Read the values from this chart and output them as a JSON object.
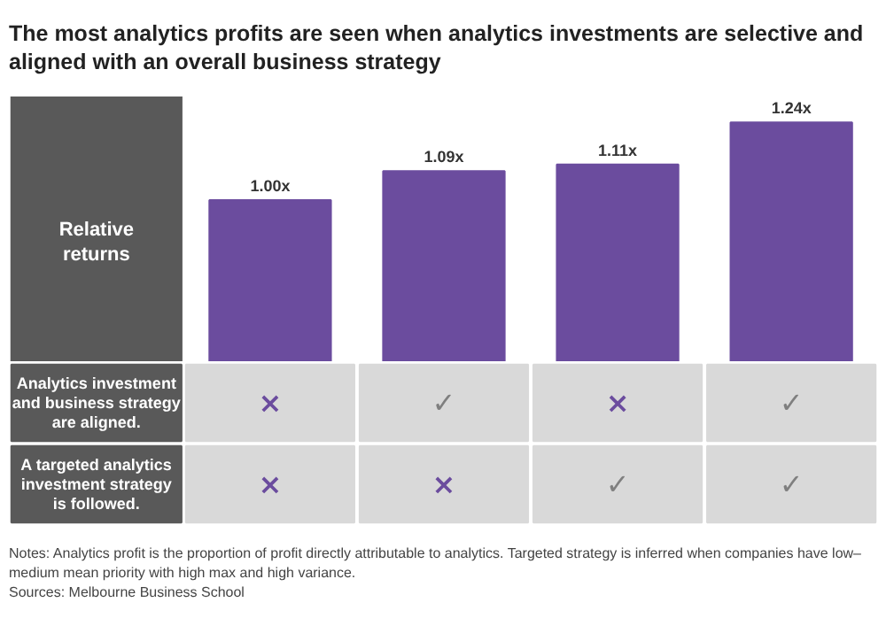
{
  "chart_data": [
    {
      "type": "bar",
      "title": "The most analytics profits are seen when analytics investments are selective and aligned with an overall business strategy",
      "ylabel": "Relative returns",
      "categories": [
        null,
        null,
        null,
        null
      ],
      "values": [
        1.0,
        1.09,
        1.11,
        1.24
      ],
      "value_labels": [
        "1.00x",
        "1.09x",
        "1.11x",
        "1.24x"
      ],
      "color": "#6b4c9e",
      "ylim": [
        0.5,
        1.32
      ],
      "grid": false
    },
    {
      "type": "other",
      "categories": [
        null,
        null,
        null,
        null
      ],
      "y_categories": [
        "Analytics investment and business strategy are aligned.",
        "A targeted analytics investment strategy is followed."
      ],
      "colors": [
        [
          "#6b4c9e",
          "#7f7f7f",
          "#6b4c9e",
          "#7f7f7f"
        ],
        [
          "#6b4c9e",
          "#6b4c9e",
          "#7f7f7f",
          "#7f7f7f"
        ]
      ],
      "cell_labels": [
        [
          "×",
          "✓",
          "×",
          "✓"
        ],
        [
          "×",
          "×",
          "✓",
          "✓"
        ]
      ],
      "annotations": [
        "Notes: Analytics profit is the proportion of profit directly attributable to analytics. Targeted strategy is inferred when companies have low–medium mean priority with high max and high variance.",
        "Sources: Melbourne Business School"
      ]
    }
  ]
}
